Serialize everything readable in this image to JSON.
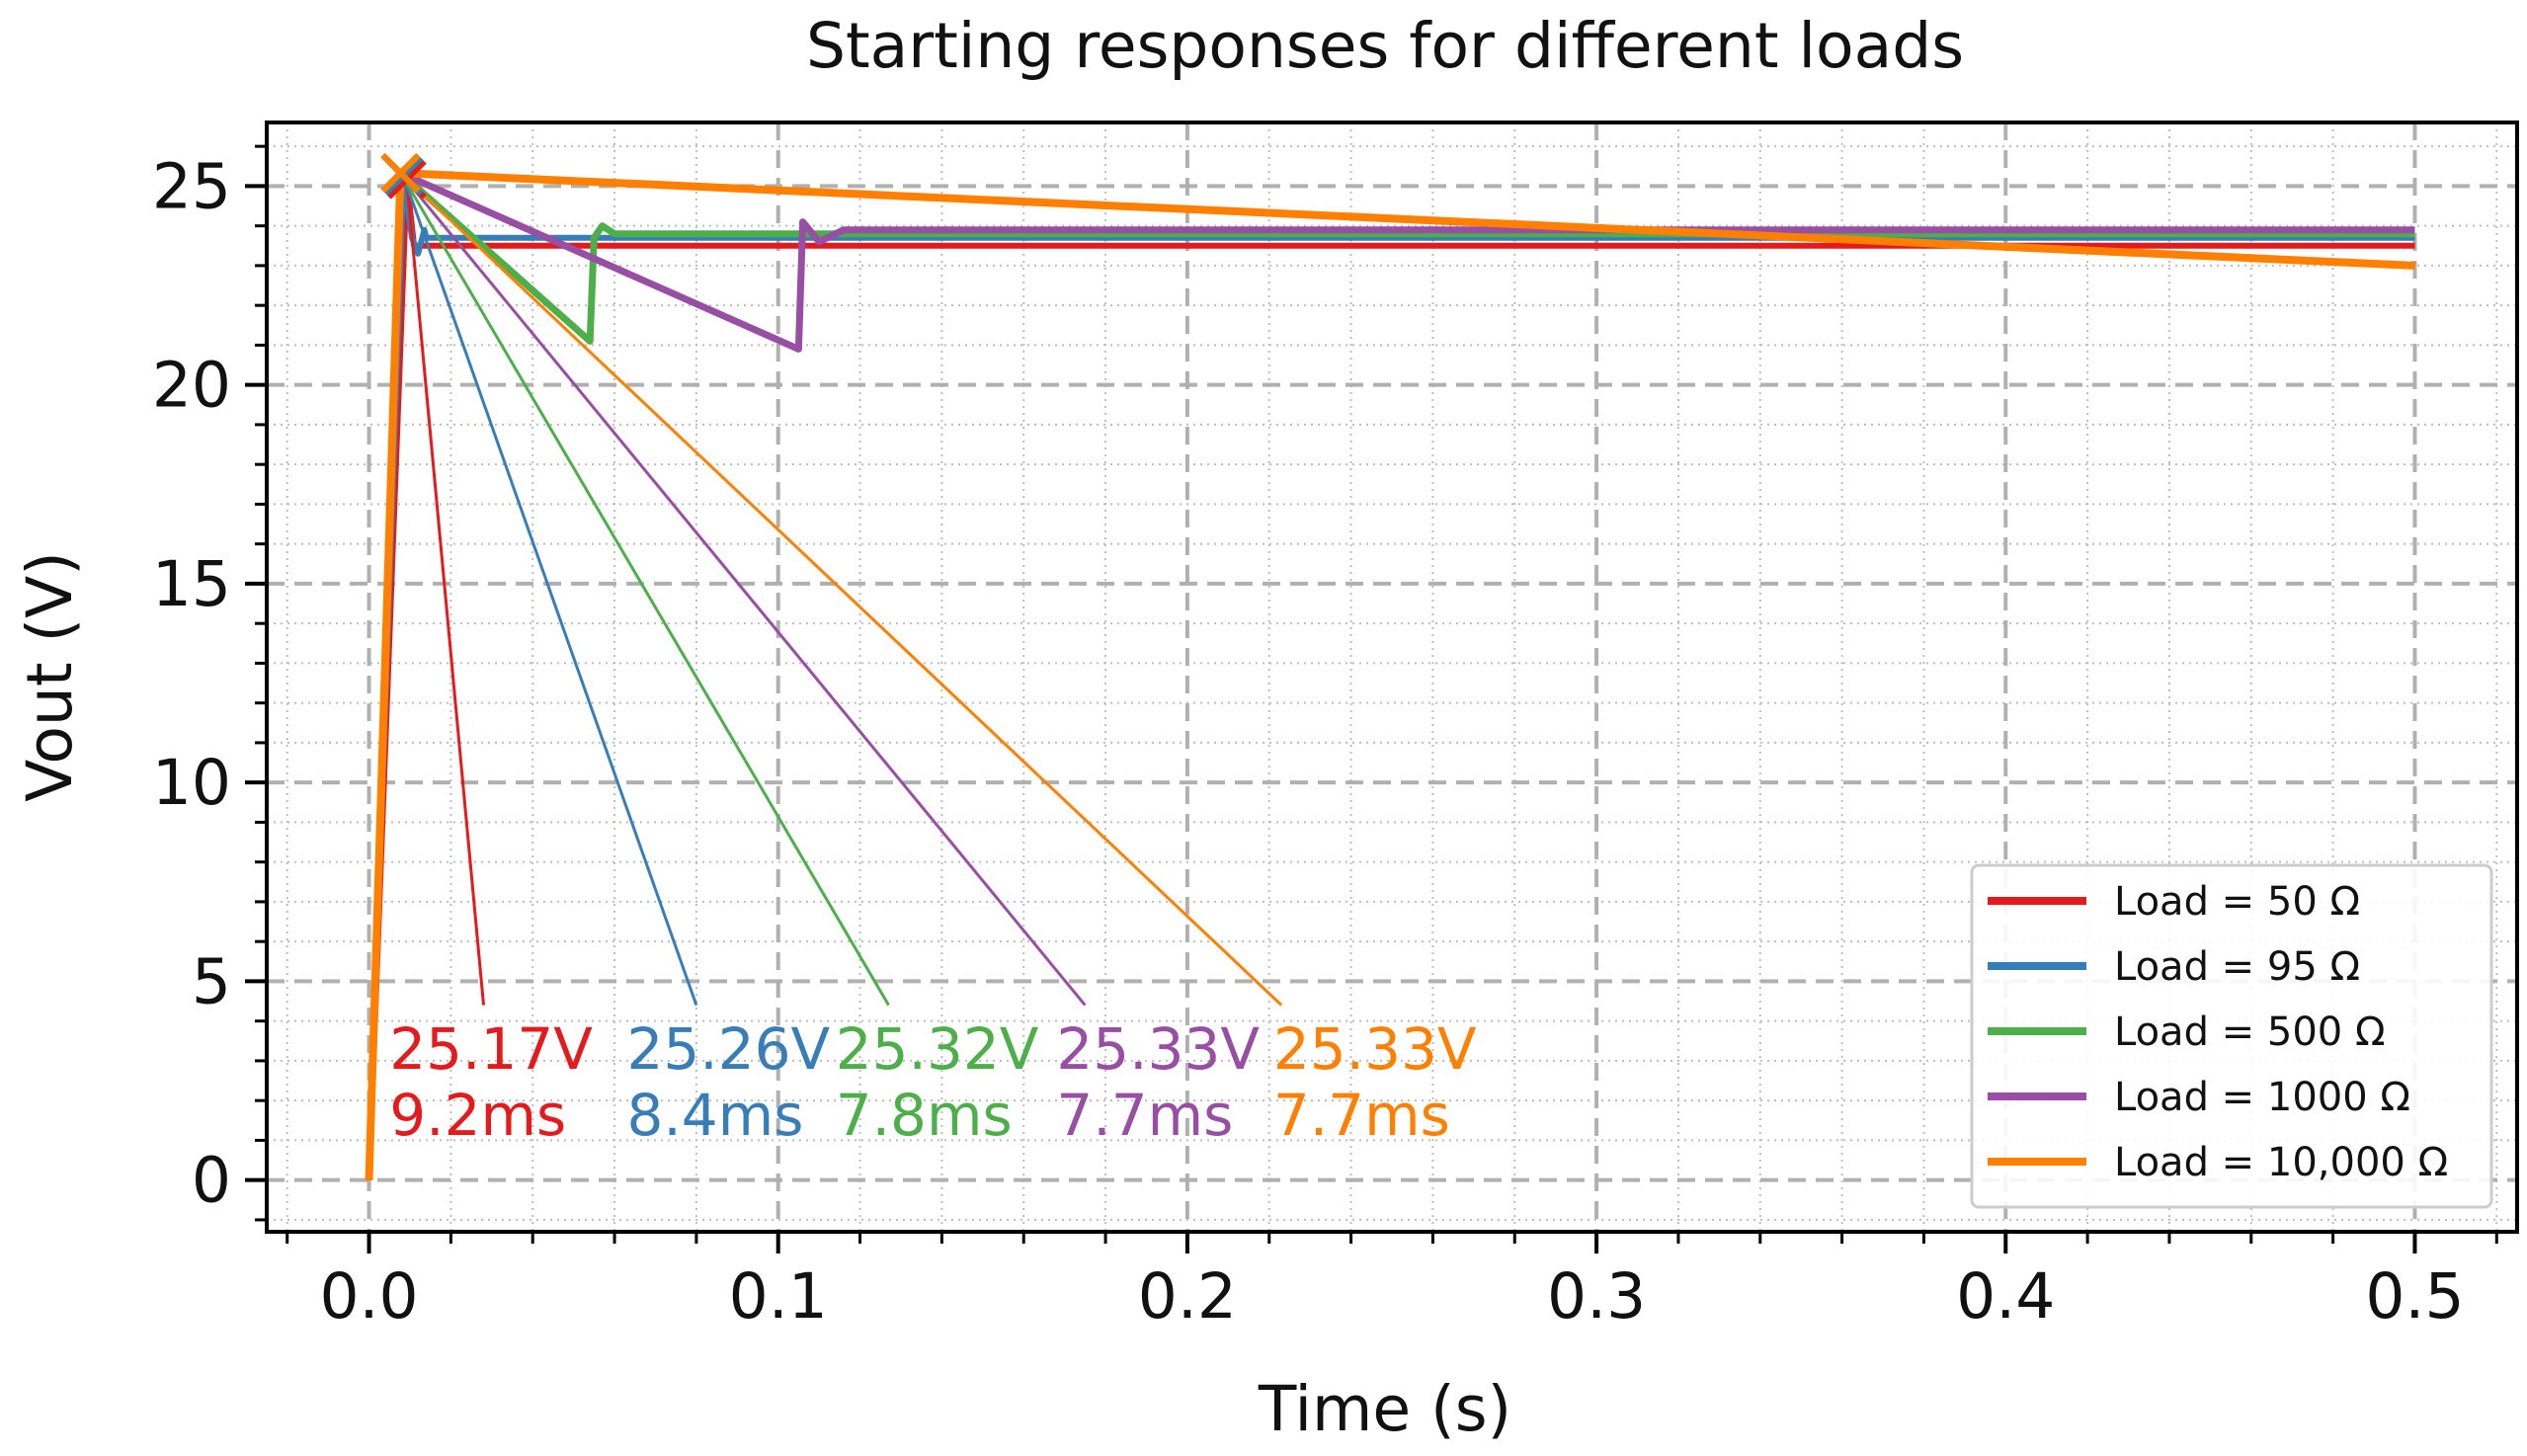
{
  "chart_data": {
    "type": "line",
    "title": "Starting responses for different loads",
    "xlabel": "Time (s)",
    "ylabel": "Vout (V)",
    "xlim": [
      -0.025,
      0.525
    ],
    "ylim": [
      -1.3,
      26.6
    ],
    "x_ticks": [
      0.0,
      0.1,
      0.2,
      0.3,
      0.4,
      0.5
    ],
    "x_tick_labels": [
      "0.0",
      "0.1",
      "0.2",
      "0.3",
      "0.4",
      "0.5"
    ],
    "y_ticks": [
      0,
      5,
      10,
      15,
      20,
      25
    ],
    "y_tick_labels": [
      "0",
      "5",
      "10",
      "15",
      "20",
      "25"
    ],
    "grid": "major dashed, minor dotted",
    "legend_position": "lower right",
    "series": [
      {
        "name": "Load = 50 Ω",
        "color": "#e41a1c",
        "x": [
          0.0,
          0.0092,
          0.011,
          0.5
        ],
        "y": [
          0.0,
          25.17,
          23.5,
          23.5
        ],
        "peak": {
          "x": 0.0092,
          "y": 25.17
        },
        "annotation": {
          "value_label": "25.17V",
          "time_label": "9.2ms",
          "text_x": 0.005,
          "text_y": 2.8,
          "line_end_x": 0.028,
          "line_end_y": 4.4
        }
      },
      {
        "name": "Load = 95 Ω",
        "color": "#377eb8",
        "x": [
          0.0,
          0.0084,
          0.0105,
          0.012,
          0.0135,
          0.014,
          0.5
        ],
        "y": [
          0.0,
          25.26,
          23.7,
          23.3,
          23.9,
          23.7,
          23.7
        ],
        "peak": {
          "x": 0.0084,
          "y": 25.26
        },
        "annotation": {
          "value_label": "25.26V",
          "time_label": "8.4ms",
          "text_x": 0.063,
          "text_y": 2.8,
          "line_end_x": 0.08,
          "line_end_y": 4.4
        }
      },
      {
        "name": "Load = 500 Ω",
        "color": "#4daf4a",
        "x": [
          0.0,
          0.0078,
          0.054,
          0.055,
          0.057,
          0.06,
          0.5
        ],
        "y": [
          0.0,
          25.32,
          21.1,
          23.7,
          24.0,
          23.8,
          23.8
        ],
        "peak": {
          "x": 0.0078,
          "y": 25.32
        },
        "annotation": {
          "value_label": "25.32V",
          "time_label": "7.8ms",
          "text_x": 0.114,
          "text_y": 2.8,
          "line_end_x": 0.127,
          "line_end_y": 4.4
        }
      },
      {
        "name": "Load = 1000 Ω",
        "color": "#984ea3",
        "x": [
          0.0,
          0.0077,
          0.105,
          0.106,
          0.11,
          0.116,
          0.5
        ],
        "y": [
          0.0,
          25.33,
          20.9,
          24.1,
          23.6,
          23.9,
          23.9
        ],
        "peak": {
          "x": 0.0077,
          "y": 25.33
        },
        "annotation": {
          "value_label": "25.33V",
          "time_label": "7.7ms",
          "text_x": 0.168,
          "text_y": 2.8,
          "line_end_x": 0.175,
          "line_end_y": 4.4
        }
      },
      {
        "name": "Load = 10,000 Ω",
        "color": "#ff7f00",
        "x": [
          0.0,
          0.0077,
          0.5
        ],
        "y": [
          0.0,
          25.33,
          23.0
        ],
        "peak": {
          "x": 0.0077,
          "y": 25.33
        },
        "annotation": {
          "value_label": "25.33V",
          "time_label": "7.7ms",
          "text_x": 0.221,
          "text_y": 2.8,
          "line_end_x": 0.223,
          "line_end_y": 4.4
        }
      }
    ]
  }
}
